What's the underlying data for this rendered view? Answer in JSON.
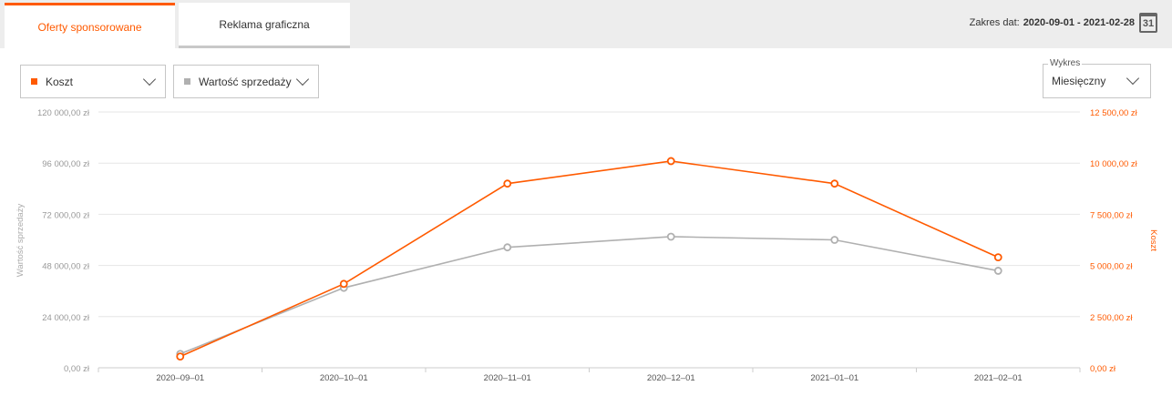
{
  "tabs": [
    {
      "label": "Oferty sponsorowane",
      "active": true
    },
    {
      "label": "Reklama graficzna",
      "active": false
    }
  ],
  "date_range": {
    "label": "Zakres dat:",
    "value": "2020-09-01 - 2021-02-28",
    "icon": "calendar-icon",
    "icon_day": "31"
  },
  "metric_selects": [
    {
      "label": "Koszt",
      "color": "#ff5a00"
    },
    {
      "label": "Wartość sprzedaży",
      "color": "#b0b0b0"
    }
  ],
  "chart_select": {
    "legend": "Wykres",
    "value": "Miesięczny"
  },
  "colors": {
    "accent": "#ff5a00",
    "secondary": "#b0b0b0",
    "grid": "#e6e6e6"
  },
  "chart_data": {
    "type": "line",
    "x": [
      "2020–09–01",
      "2020–10–01",
      "2020–11–01",
      "2020–12–01",
      "2021–01–01",
      "2021–02–01"
    ],
    "left_axis": {
      "label": "Wartość sprzedaży",
      "ticks": [
        "0,00 zł",
        "24 000,00 zł",
        "48 000,00 zł",
        "72 000,00 zł",
        "96 000,00 zł",
        "120 000,00 zł"
      ],
      "ylim": [
        0,
        120000
      ]
    },
    "right_axis": {
      "label": "Koszt",
      "ticks": [
        "0,00 zł",
        "2 500,00 zł",
        "5 000,00 zł",
        "7 500,00 zł",
        "10 000,00 zł",
        "12 500,00 zł"
      ],
      "ylim": [
        0,
        12500
      ]
    },
    "series": [
      {
        "name": "Wartość sprzedaży",
        "axis": "left",
        "color": "#b0b0b0",
        "values": [
          6500,
          37500,
          56500,
          61500,
          60000,
          45500
        ]
      },
      {
        "name": "Koszt",
        "axis": "right",
        "color": "#ff5a00",
        "values": [
          550,
          4100,
          9000,
          10100,
          9000,
          5400
        ]
      }
    ],
    "grid": true
  }
}
